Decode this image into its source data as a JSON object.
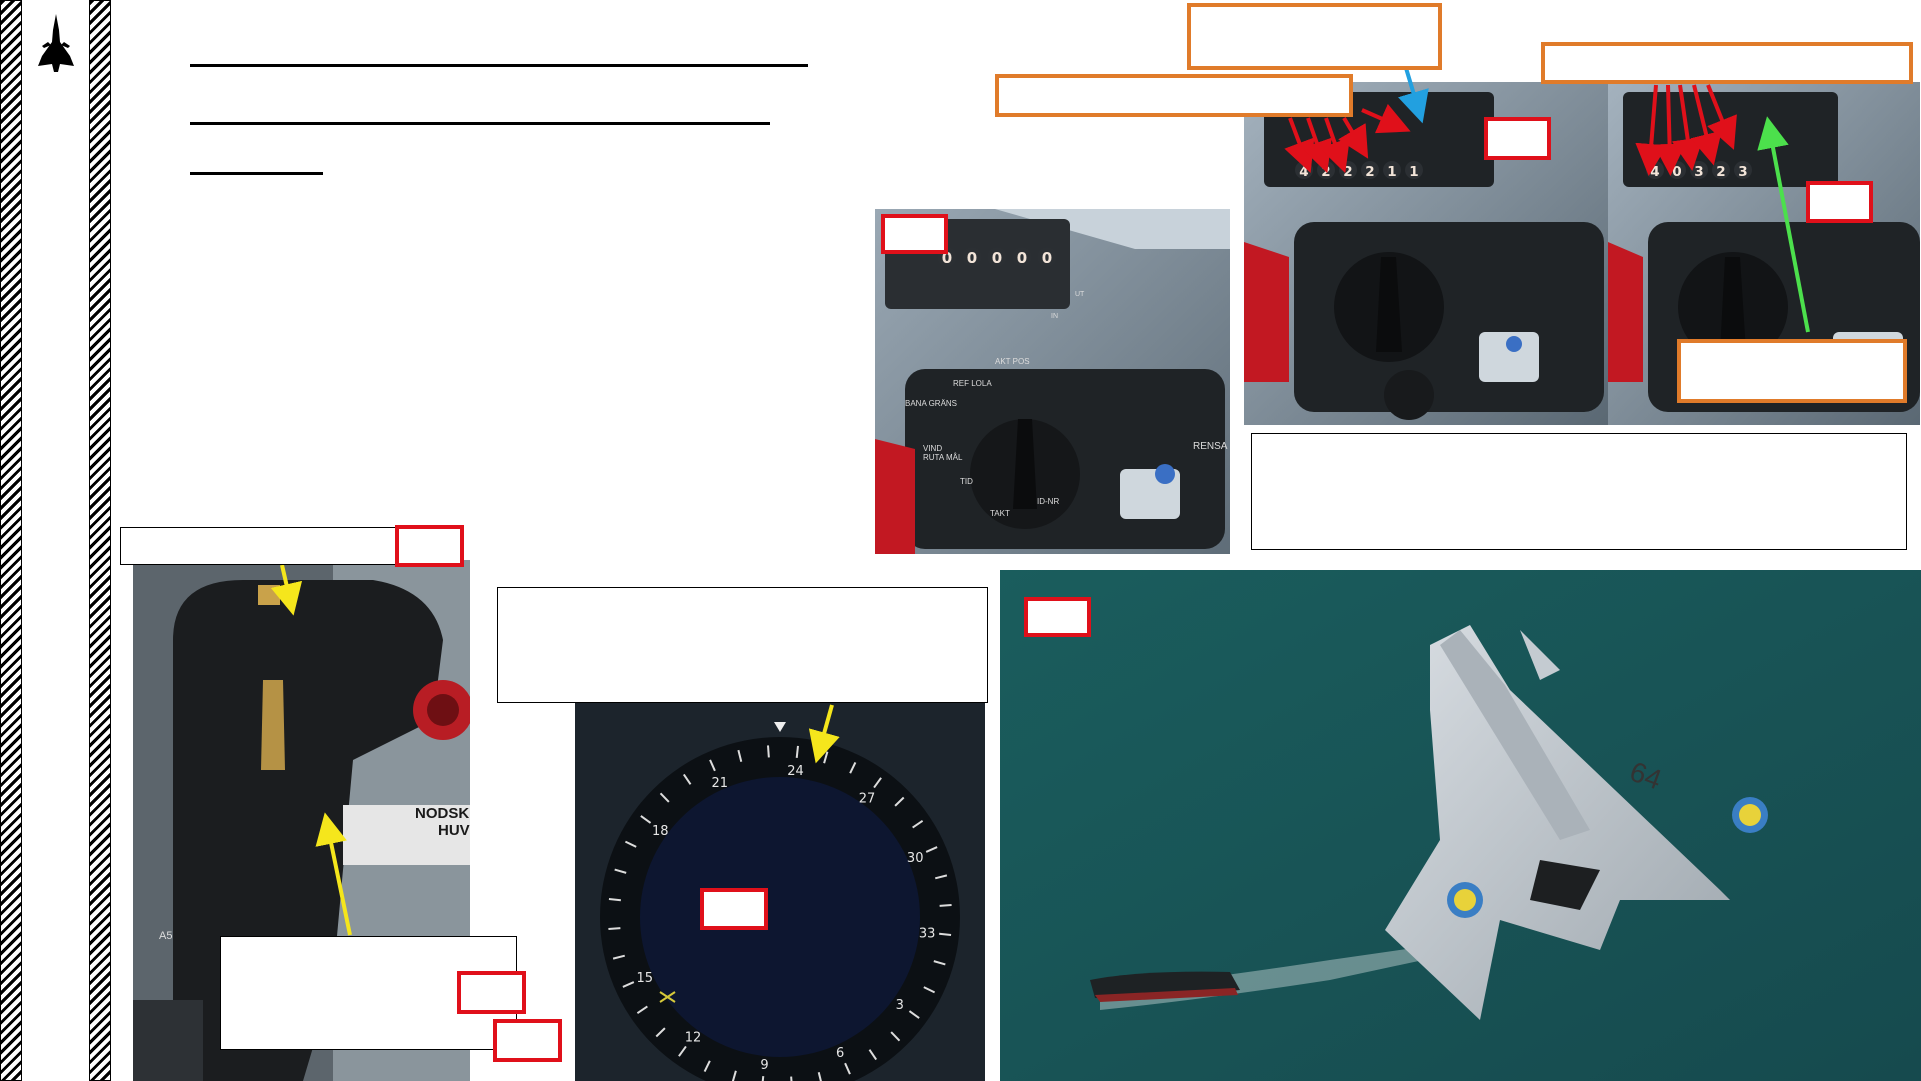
{
  "sidebar": {
    "logo_icon": "viggen-aircraft-icon"
  },
  "headings": {
    "line1": "",
    "line2": "",
    "line3": ""
  },
  "body_paragraph": "",
  "callouts": {
    "rb04_type": "",
    "target_speed_mode": "",
    "target_heading_note": "",
    "target_number_box": "",
    "target_code_box": "",
    "target_confirm_box": "",
    "throttle_label": "",
    "throttle_note": "",
    "heading_indicator_note": ""
  },
  "steps": {
    "s1": "",
    "s2": "",
    "s3": "",
    "s4": "",
    "s5": "",
    "s6": "",
    "s7": "",
    "s8": "",
    "s9": ""
  },
  "datapanel_displays": {
    "blank": [
      "0",
      "0",
      "0",
      "0",
      "0"
    ],
    "entry1": [
      "4",
      "2",
      "2",
      "2",
      "1",
      "1"
    ],
    "entry2": [
      "4",
      "0",
      "3",
      "2",
      "3"
    ]
  },
  "datapanel_labels": {
    "bana_grans": "BANA GRÄNS",
    "ref_lola": "REF LOLA",
    "akt_pos": "AKT POS",
    "vind_ruta_mal": "VIND RUTA MÅL",
    "tid": "TID",
    "takt": "TAKT",
    "id_nr": "ID-NR",
    "rensa": "RENSA",
    "in": "IN",
    "ut": "UT"
  },
  "throttle_labels": {
    "nodsk": "NODSK",
    "huv": "HUV",
    "a5": "A5"
  },
  "compass_ticks": [
    "18",
    "21",
    "24",
    "27",
    "30",
    "33",
    "3",
    "6",
    "9",
    "12",
    "15"
  ],
  "aircraft_marking": "64",
  "colors": {
    "red": "#e0101a",
    "orange": "#e07b2a",
    "yellow": "#f5e61c",
    "blue": "#22a0e0",
    "green": "#4ce04c"
  }
}
